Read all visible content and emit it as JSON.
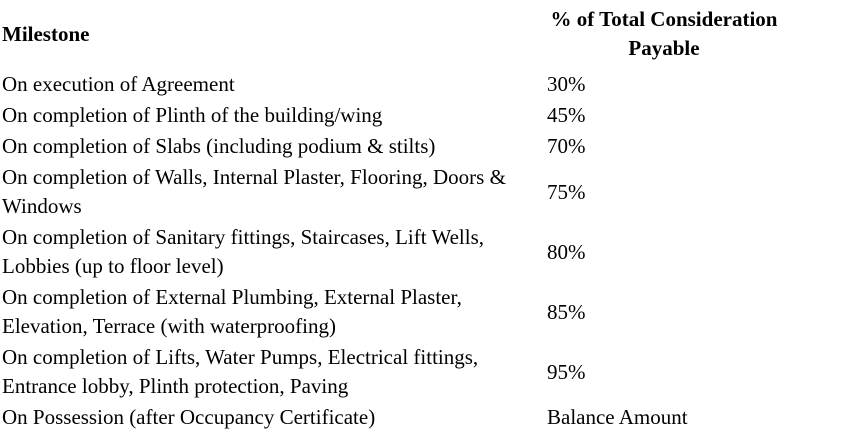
{
  "document": {
    "header": {
      "milestone": "Milestone",
      "payable": "% of Total Consideration Payable"
    },
    "rows": [
      {
        "milestone": "On execution of Agreement",
        "payable": "30%"
      },
      {
        "milestone": "On completion of Plinth of the building/wing",
        "payable": "45%"
      },
      {
        "milestone": "On completion of Slabs (including podium & stilts)",
        "payable": "70%"
      },
      {
        "milestone": "On completion of Walls, Internal Plaster, Flooring, Doors & Windows",
        "payable": "75%"
      },
      {
        "milestone": "On completion of Sanitary fittings, Staircases, Lift Wells, Lobbies (up to floor level)",
        "payable": "80%"
      },
      {
        "milestone": "On completion of External Plumbing, External Plaster, Elevation, Terrace (with waterproofing)",
        "payable": "85%"
      },
      {
        "milestone": "On completion of Lifts, Water Pumps, Electrical fittings, Entrance lobby, Plinth protection, Paving",
        "payable": "95%"
      },
      {
        "milestone": "On Possession (after Occupancy Certificate)",
        "payable": "Balance Amount"
      }
    ]
  }
}
